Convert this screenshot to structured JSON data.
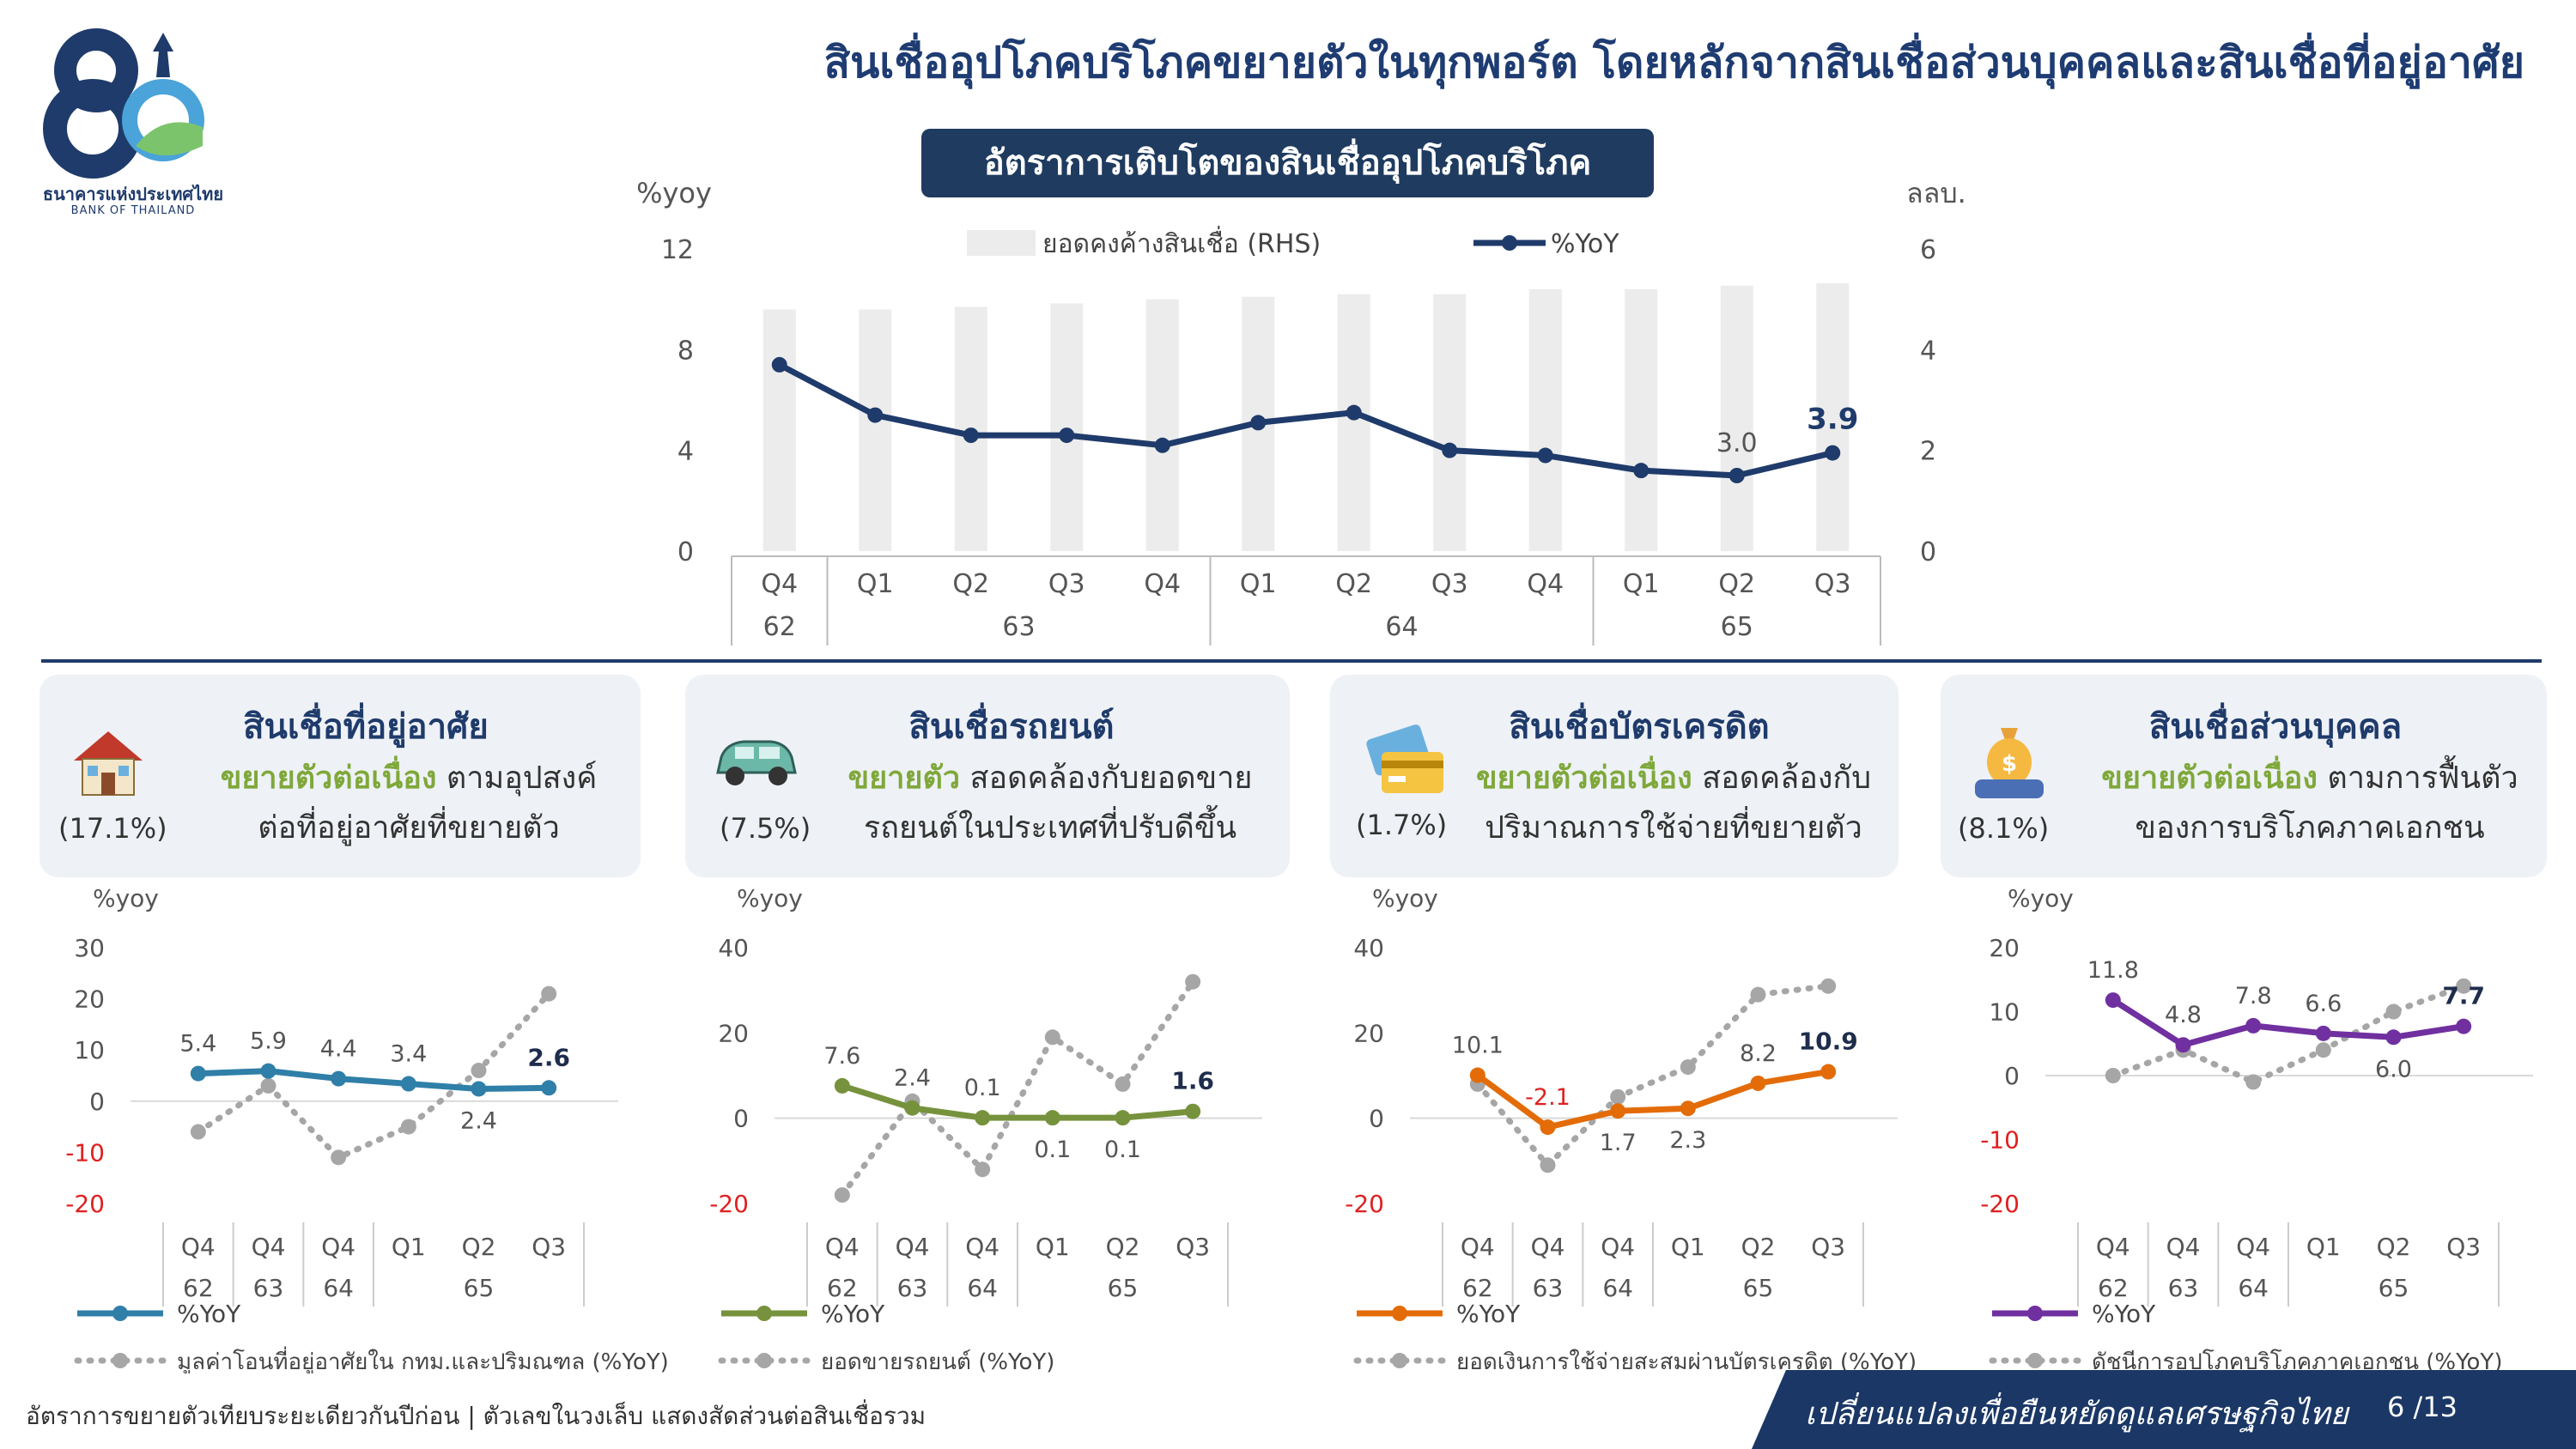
{
  "header": {
    "logo_th": "ธนาคารแห่งประเทศไทย",
    "logo_en": "BANK OF THAILAND",
    "logo_numeral": "80",
    "title": "สินเชื่ออุปโภคบริโภคขยายตัวในทุกพอร์ต โดยหลักจากสินเชื่อส่วนบุคคลและสินเชื่อที่อยู่อาศัย"
  },
  "main_chart_title": "อัตราการเติบโตของสินเชื่ออุปโภคบริโภค",
  "colors": {
    "navy": "#1f3b6b",
    "bar_gray": "#ececec",
    "dotted_gray": "#a6a6a6",
    "housing": "#2f7fa8",
    "auto": "#76923c",
    "credit": "#e36c09",
    "personal": "#7030a0",
    "highlight_green": "#7fa83a",
    "negative_red": "#e02020"
  },
  "cards": [
    {
      "title": "สินเชื่อที่อยู่อาศัย",
      "icon": "house-icon",
      "share": "(17.1%)",
      "highlight": "ขยายตัวต่อเนื่อง",
      "desc_rest": " ตามอุปสงค์",
      "desc_line2": "ต่อที่อยู่อาศัยที่ขยายตัว"
    },
    {
      "title": "สินเชื่อรถยนต์",
      "icon": "car-icon",
      "share": "(7.5%)",
      "highlight": "ขยายตัว",
      "desc_rest": " สอดคล้องกับยอดขาย",
      "desc_line2": "รถยนต์ในประเทศที่ปรับดีขึ้น"
    },
    {
      "title": "สินเชื่อบัตรเครดิต",
      "icon": "credit-card-icon",
      "share": "(1.7%)",
      "highlight": "ขยายตัวต่อเนื่อง",
      "desc_rest": " สอดคล้องกับ",
      "desc_line2": "ปริมาณการใช้จ่ายที่ขยายตัว"
    },
    {
      "title": "สินเชื่อส่วนบุคคล",
      "icon": "money-bag-icon",
      "share": "(8.1%)",
      "highlight": "ขยายตัวต่อเนื่อง",
      "desc_rest": " ตามการฟื้นตัว",
      "desc_line2": "ของการบริโภคภาคเอกชน"
    }
  ],
  "footer": {
    "note": "อัตราการขยายตัวเทียบระยะเดียวกันปีก่อน | ตัวเลขในวงเล็บ แสดงสัดส่วนต่อสินเชื่อรวม",
    "slogan": "เปลี่ยนแปลงเพื่อยืนหยัดดูแลเศรษฐกิจไทย",
    "page": "6 /13"
  },
  "chart_data": [
    {
      "type": "bar+line",
      "title": "อัตราการเติบโตของสินเชื่ออุปโภคบริโภค",
      "ylabel": "%yoy",
      "ylabel_right": "ลลบ.",
      "ylim": [
        0,
        12
      ],
      "yticks": [
        0,
        4,
        8,
        12
      ],
      "ylim_right": [
        0,
        6
      ],
      "yticks_right": [
        0,
        2,
        4,
        6
      ],
      "categories": [
        "Q4",
        "Q1",
        "Q2",
        "Q3",
        "Q4",
        "Q1",
        "Q2",
        "Q3",
        "Q4",
        "Q1",
        "Q2",
        "Q3"
      ],
      "year_groups": [
        {
          "label": "62",
          "count": 1
        },
        {
          "label": "63",
          "count": 4
        },
        {
          "label": "64",
          "count": 4
        },
        {
          "label": "65",
          "count": 3
        }
      ],
      "legend": {
        "bar": "ยอดคงค้างสินเชื่อ (RHS)",
        "line": "%YoY"
      },
      "series": [
        {
          "name": "ยอดคงค้างสินเชื่อ (RHS)",
          "kind": "bar",
          "axis": "right",
          "values": [
            4.8,
            4.8,
            4.85,
            4.92,
            5.0,
            5.05,
            5.1,
            5.1,
            5.2,
            5.2,
            5.27,
            5.32
          ]
        },
        {
          "name": "%YoY",
          "kind": "line",
          "axis": "left",
          "values": [
            7.4,
            5.4,
            4.6,
            4.6,
            4.2,
            5.1,
            5.5,
            4.0,
            3.8,
            3.2,
            3.0,
            3.9
          ]
        }
      ],
      "data_labels": [
        {
          "index": 10,
          "text": "3.0"
        },
        {
          "index": 11,
          "text": "3.9"
        }
      ]
    },
    {
      "type": "line",
      "ylabel": "%yoy",
      "ylim": [
        -20,
        30
      ],
      "yticks": [
        -20,
        -10,
        0,
        10,
        20,
        30
      ],
      "categories": [
        "Q4",
        "Q4",
        "Q4",
        "Q1",
        "Q2",
        "Q3"
      ],
      "year_groups": [
        {
          "label": "62",
          "count": 1
        },
        {
          "label": "63",
          "count": 1
        },
        {
          "label": "64",
          "count": 1
        },
        {
          "label": "65",
          "count": 3
        }
      ],
      "series": [
        {
          "name": "%YoY",
          "style": "solid",
          "values": [
            5.4,
            5.9,
            4.4,
            3.4,
            2.4,
            2.6
          ]
        },
        {
          "name": "มูลค่าโอนที่อยู่อาศัยใน กทม.และปริมณฑล (%YoY)",
          "style": "dotted",
          "values": [
            -6,
            3,
            -11,
            -5,
            6,
            21
          ]
        }
      ],
      "data_labels": [
        "5.4",
        "5.9",
        "4.4",
        "3.4",
        "2.4",
        "2.6"
      ]
    },
    {
      "type": "line",
      "ylabel": "%yoy",
      "ylim": [
        -20,
        40
      ],
      "yticks": [
        -20,
        0,
        20,
        40
      ],
      "categories": [
        "Q4",
        "Q4",
        "Q4",
        "Q1",
        "Q2",
        "Q3"
      ],
      "year_groups": [
        {
          "label": "62",
          "count": 1
        },
        {
          "label": "63",
          "count": 1
        },
        {
          "label": "64",
          "count": 1
        },
        {
          "label": "65",
          "count": 3
        }
      ],
      "series": [
        {
          "name": "%YoY",
          "style": "solid",
          "values": [
            7.6,
            2.4,
            0.1,
            0.1,
            0.1,
            1.6
          ]
        },
        {
          "name": "ยอดขายรถยนต์ (%YoY)",
          "style": "dotted",
          "values": [
            -18,
            4,
            -12,
            19,
            8,
            32
          ]
        }
      ],
      "data_labels": [
        "7.6",
        "2.4",
        "0.1",
        "0.1",
        "0.1",
        "1.6"
      ]
    },
    {
      "type": "line",
      "ylabel": "%yoy",
      "ylim": [
        -20,
        40
      ],
      "yticks": [
        -20,
        0,
        20,
        40
      ],
      "categories": [
        "Q4",
        "Q4",
        "Q4",
        "Q1",
        "Q2",
        "Q3"
      ],
      "year_groups": [
        {
          "label": "62",
          "count": 1
        },
        {
          "label": "63",
          "count": 1
        },
        {
          "label": "64",
          "count": 1
        },
        {
          "label": "65",
          "count": 3
        }
      ],
      "series": [
        {
          "name": "%YoY",
          "style": "solid",
          "values": [
            10.1,
            -2.1,
            1.7,
            2.3,
            8.2,
            10.9
          ]
        },
        {
          "name": "ยอดเงินการใช้จ่ายสะสมผ่านบัตรเครดิต (%YoY)",
          "style": "dotted",
          "values": [
            8,
            -11,
            5,
            12,
            29,
            31
          ]
        }
      ],
      "data_labels": [
        "10.1",
        "-2.1",
        "1.7",
        "2.3",
        "8.2",
        "10.9"
      ]
    },
    {
      "type": "line",
      "ylabel": "%yoy",
      "ylim": [
        -20,
        20
      ],
      "yticks": [
        -20,
        -10,
        0,
        10,
        20
      ],
      "categories": [
        "Q4",
        "Q4",
        "Q4",
        "Q1",
        "Q2",
        "Q3"
      ],
      "year_groups": [
        {
          "label": "62",
          "count": 1
        },
        {
          "label": "63",
          "count": 1
        },
        {
          "label": "64",
          "count": 1
        },
        {
          "label": "65",
          "count": 3
        }
      ],
      "series": [
        {
          "name": "%YoY",
          "style": "solid",
          "values": [
            11.8,
            4.8,
            7.8,
            6.6,
            6.0,
            7.7
          ]
        },
        {
          "name": "ดัชนีการอุปโภคบริโภคภาคเอกชน (%YoY)",
          "style": "dotted",
          "values": [
            0,
            4,
            -1,
            4,
            10,
            14
          ]
        }
      ],
      "data_labels": [
        "11.8",
        "4.8",
        "7.8",
        "6.6",
        "6.0",
        "7.7"
      ]
    }
  ]
}
